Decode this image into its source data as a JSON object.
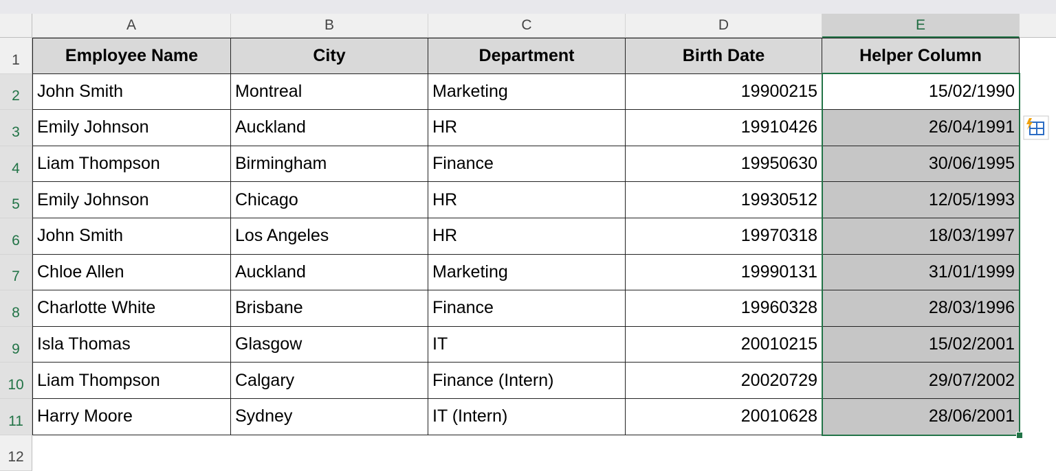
{
  "columns": [
    "A",
    "B",
    "C",
    "D",
    "E"
  ],
  "rows": [
    "1",
    "2",
    "3",
    "4",
    "5",
    "6",
    "7",
    "8",
    "9",
    "10",
    "11",
    "12"
  ],
  "table": {
    "header": [
      "Employee Name",
      "City",
      "Department",
      "Birth Date",
      "Helper Column"
    ],
    "rows": [
      [
        "John Smith",
        "Montreal",
        "Marketing",
        "19900215",
        "15/02/1990"
      ],
      [
        "Emily Johnson",
        "Auckland",
        "HR",
        "19910426",
        "26/04/1991"
      ],
      [
        "Liam Thompson",
        "Birmingham",
        "Finance",
        "19950630",
        "30/06/1995"
      ],
      [
        "Emily Johnson",
        "Chicago",
        "HR",
        "19930512",
        "12/05/1993"
      ],
      [
        "John Smith",
        "Los Angeles",
        "HR",
        "19970318",
        "18/03/1997"
      ],
      [
        "Chloe Allen",
        "Auckland",
        "Marketing",
        "19990131",
        "31/01/1999"
      ],
      [
        "Charlotte White",
        "Brisbane",
        "Finance",
        "19960328",
        "28/03/1996"
      ],
      [
        "Isla Thomas",
        "Glasgow",
        "IT",
        "20010215",
        "15/02/2001"
      ],
      [
        "Liam Thompson",
        "Calgary",
        "Finance (Intern)",
        "20020729",
        "29/07/2002"
      ],
      [
        "Harry Moore",
        "Sydney",
        "IT (Intern)",
        "20010628",
        "28/06/2001"
      ]
    ]
  }
}
